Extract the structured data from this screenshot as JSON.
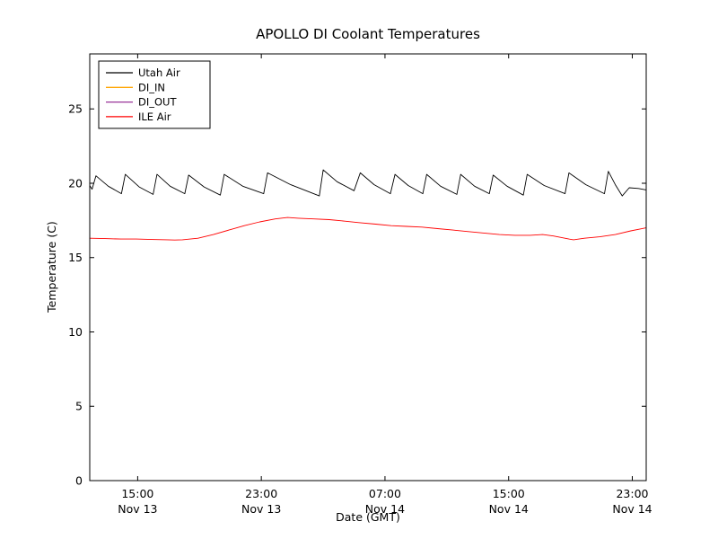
{
  "figure": {
    "background": "#ffffff",
    "title": "APOLLO DI Coolant Temperatures"
  },
  "chart_data": {
    "type": "line",
    "title": "APOLLO DI Coolant Temperatures",
    "xlabel": "Date (GMT)",
    "ylabel": "Temperature (C)",
    "x_unit": "hours since Nov 13 12:00 GMT",
    "xlim": [
      0,
      36
    ],
    "ylim": [
      0,
      28.7
    ],
    "grid": false,
    "tick_direction": "in",
    "y_ticks": [
      {
        "value": 0,
        "label": "0"
      },
      {
        "value": 5,
        "label": "5"
      },
      {
        "value": 10,
        "label": "10"
      },
      {
        "value": 15,
        "label": "15"
      },
      {
        "value": 20,
        "label": "20"
      },
      {
        "value": 25,
        "label": "25"
      }
    ],
    "x_ticks": [
      {
        "value": 3.1,
        "time": "15:00",
        "date": "Nov 13"
      },
      {
        "value": 11.1,
        "time": "23:00",
        "date": "Nov 13"
      },
      {
        "value": 19.1,
        "time": "07:00",
        "date": "Nov 14"
      },
      {
        "value": 27.1,
        "time": "15:00",
        "date": "Nov 14"
      },
      {
        "value": 35.1,
        "time": "23:00",
        "date": "Nov 14"
      }
    ],
    "legend": {
      "position": "upper left",
      "entries": [
        "Utah Air",
        "DI_IN",
        "DI_OUT",
        "ILE Air"
      ]
    },
    "series": [
      {
        "name": "Utah Air",
        "color": "#000000",
        "points": [
          [
            0,
            19.85
          ],
          [
            0.15,
            19.6
          ],
          [
            0.4,
            20.5
          ],
          [
            1.2,
            19.8
          ],
          [
            2.05,
            19.3
          ],
          [
            2.3,
            20.6
          ],
          [
            3.2,
            19.75
          ],
          [
            4.1,
            19.25
          ],
          [
            4.35,
            20.6
          ],
          [
            5.2,
            19.8
          ],
          [
            6.15,
            19.3
          ],
          [
            6.4,
            20.55
          ],
          [
            7.4,
            19.75
          ],
          [
            8.45,
            19.2
          ],
          [
            8.7,
            20.6
          ],
          [
            9.9,
            19.8
          ],
          [
            11.25,
            19.3
          ],
          [
            11.5,
            20.7
          ],
          [
            13.0,
            19.9
          ],
          [
            14.85,
            19.15
          ],
          [
            15.1,
            20.9
          ],
          [
            16.0,
            20.1
          ],
          [
            17.1,
            19.5
          ],
          [
            17.5,
            20.7
          ],
          [
            18.4,
            19.9
          ],
          [
            19.45,
            19.3
          ],
          [
            19.75,
            20.6
          ],
          [
            20.6,
            19.85
          ],
          [
            21.55,
            19.3
          ],
          [
            21.8,
            20.6
          ],
          [
            22.7,
            19.8
          ],
          [
            23.75,
            19.25
          ],
          [
            24.0,
            20.6
          ],
          [
            24.9,
            19.8
          ],
          [
            25.85,
            19.3
          ],
          [
            26.1,
            20.55
          ],
          [
            27.0,
            19.8
          ],
          [
            28.05,
            19.2
          ],
          [
            28.3,
            20.6
          ],
          [
            29.4,
            19.85
          ],
          [
            30.75,
            19.3
          ],
          [
            31.0,
            20.7
          ],
          [
            32.1,
            19.9
          ],
          [
            33.3,
            19.3
          ],
          [
            33.55,
            20.8
          ],
          [
            34.0,
            19.9
          ],
          [
            34.45,
            19.15
          ],
          [
            34.9,
            19.7
          ],
          [
            35.5,
            19.65
          ],
          [
            36.0,
            19.55
          ]
        ]
      },
      {
        "name": "DI_IN",
        "color": "#ffa500",
        "points": []
      },
      {
        "name": "DI_OUT",
        "color": "#993399",
        "points": []
      },
      {
        "name": "ILE Air",
        "color": "#ff0000",
        "points": [
          [
            0,
            16.3
          ],
          [
            1,
            16.28
          ],
          [
            2,
            16.25
          ],
          [
            3,
            16.25
          ],
          [
            4,
            16.22
          ],
          [
            5,
            16.2
          ],
          [
            5.5,
            16.18
          ],
          [
            6,
            16.2
          ],
          [
            7,
            16.3
          ],
          [
            8,
            16.55
          ],
          [
            9,
            16.85
          ],
          [
            10,
            17.15
          ],
          [
            11,
            17.4
          ],
          [
            12,
            17.6
          ],
          [
            12.8,
            17.7
          ],
          [
            13.5,
            17.65
          ],
          [
            14.5,
            17.6
          ],
          [
            15.5,
            17.55
          ],
          [
            16.5,
            17.45
          ],
          [
            17.4,
            17.35
          ],
          [
            18.5,
            17.25
          ],
          [
            19.5,
            17.15
          ],
          [
            20.5,
            17.1
          ],
          [
            21.5,
            17.05
          ],
          [
            22.5,
            16.95
          ],
          [
            23.5,
            16.85
          ],
          [
            24.5,
            16.75
          ],
          [
            25.5,
            16.65
          ],
          [
            26.5,
            16.55
          ],
          [
            27.5,
            16.5
          ],
          [
            28.5,
            16.5
          ],
          [
            29.3,
            16.55
          ],
          [
            30,
            16.45
          ],
          [
            31,
            16.25
          ],
          [
            31.3,
            16.2
          ],
          [
            32,
            16.3
          ],
          [
            33,
            16.4
          ],
          [
            34,
            16.55
          ],
          [
            35,
            16.8
          ],
          [
            36,
            17.0
          ]
        ]
      }
    ]
  }
}
